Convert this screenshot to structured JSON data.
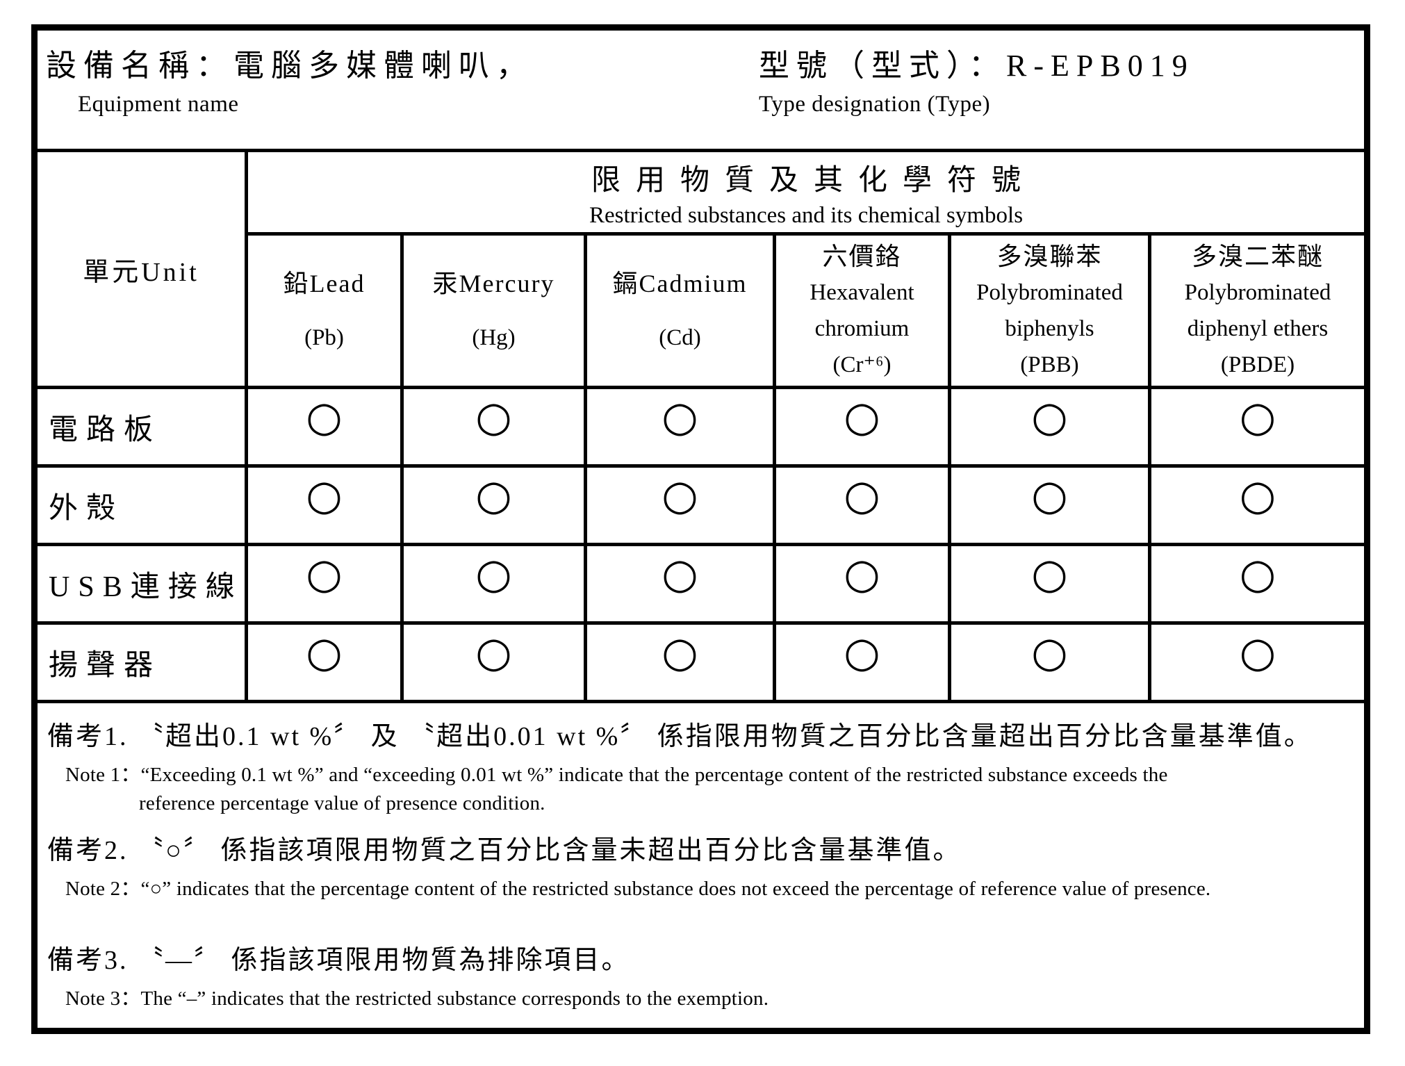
{
  "header": {
    "equipment_label_zh": "設備名稱：",
    "equipment_value_zh": "電腦多媒體喇叭，",
    "equipment_label_en": "Equipment name",
    "type_label_zh": "型號（型式）：",
    "type_value": "R-EPB019",
    "type_label_en": "Type designation (Type)"
  },
  "table": {
    "unit_header": "單元Unit",
    "restricted_header_zh": "限用物質及其化學符號",
    "restricted_header_en": "Restricted substances and its chemical symbols",
    "columns": [
      {
        "lines": [
          "鉛Lead",
          "(Pb)"
        ]
      },
      {
        "lines": [
          "汞Mercury",
          "(Hg)"
        ]
      },
      {
        "lines": [
          "鎘Cadmium",
          "(Cd)"
        ]
      },
      {
        "lines": [
          "六價鉻",
          "Hexavalent",
          "chromium",
          "(Cr⁺⁶)"
        ]
      },
      {
        "lines": [
          "多溴聯苯",
          "Polybrominated",
          "biphenyls",
          "(PBB)"
        ]
      },
      {
        "lines": [
          "多溴二苯醚",
          "Polybrominated",
          "diphenyl ethers",
          "(PBDE)"
        ]
      }
    ],
    "rows": [
      {
        "label": "電路板",
        "values": [
          "○",
          "○",
          "○",
          "○",
          "○",
          "○"
        ]
      },
      {
        "label": "外殼",
        "values": [
          "○",
          "○",
          "○",
          "○",
          "○",
          "○"
        ]
      },
      {
        "label": "USB連接線",
        "values": [
          "○",
          "○",
          "○",
          "○",
          "○",
          "○"
        ]
      },
      {
        "label": "揚聲器",
        "values": [
          "○",
          "○",
          "○",
          "○",
          "○",
          "○"
        ]
      }
    ],
    "pass_symbol": "○",
    "exempt_symbol": "—"
  },
  "notes": {
    "note1_zh": "備考1. 〝超出0.1 wt %〞 及 〝超出0.01 wt %〞 係指限用物質之百分比含量超出百分比含量基準值。",
    "note1_en_line1": "Note 1：“Exceeding 0.1 wt %” and “exceeding 0.01 wt %” indicate that the percentage content of the restricted substance exceeds the",
    "note1_en_line2": "reference percentage value of presence condition.",
    "note2_zh": "備考2. 〝○〞 係指該項限用物質之百分比含量未超出百分比含量基準值。",
    "note2_en": "Note 2：“○” indicates that the percentage content of the restricted substance does not exceed the percentage of reference value of presence.",
    "note3_zh": "備考3. 〝—〞 係指該項限用物質為排除項目。",
    "note3_en": "Note 3：The “–” indicates that the restricted substance corresponds to the exemption."
  }
}
